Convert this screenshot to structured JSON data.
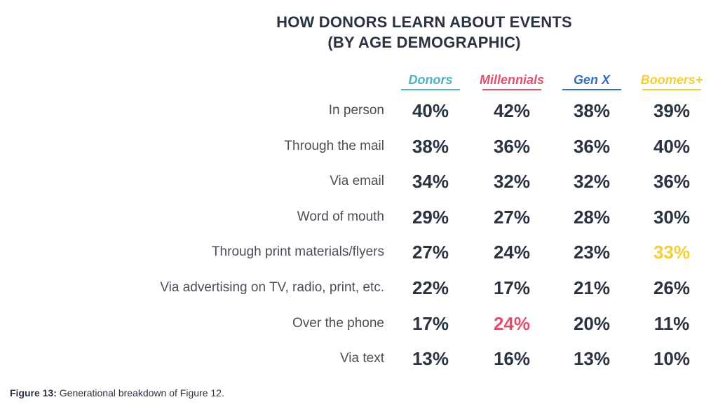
{
  "chart_data": {
    "type": "table",
    "title_line1": "HOW DONORS LEARN ABOUT EVENTS",
    "title_line2": "(BY AGE DEMOGRAPHIC)",
    "columns": [
      {
        "name": "Donors",
        "color": "#4bb3c1"
      },
      {
        "name": "Millennials",
        "color": "#e0506e"
      },
      {
        "name": "Gen X",
        "color": "#2f6fc0"
      },
      {
        "name": "Boomers+",
        "color": "#f2cf38"
      }
    ],
    "rows": [
      {
        "label": "In person",
        "values": [
          "40%",
          "42%",
          "38%",
          "39%"
        ]
      },
      {
        "label": "Through the mail",
        "values": [
          "38%",
          "36%",
          "36%",
          "40%"
        ]
      },
      {
        "label": "Via email",
        "values": [
          "34%",
          "32%",
          "32%",
          "36%"
        ]
      },
      {
        "label": "Word of mouth",
        "values": [
          "29%",
          "27%",
          "28%",
          "30%"
        ]
      },
      {
        "label": "Through print materials/flyers",
        "values": [
          "27%",
          "24%",
          "23%",
          "33%"
        ],
        "highlight_col": 3
      },
      {
        "label": "Via advertising on TV, radio, print, etc.",
        "values": [
          "22%",
          "17%",
          "21%",
          "26%"
        ]
      },
      {
        "label": "Over the phone",
        "values": [
          "17%",
          "24%",
          "20%",
          "11%"
        ],
        "highlight_col": 1
      },
      {
        "label": "Via text",
        "values": [
          "13%",
          "16%",
          "13%",
          "10%"
        ]
      }
    ],
    "default_value_color": "#2b3340"
  },
  "caption": {
    "label": "Figure 13:",
    "text": " Generational breakdown of Figure 12."
  }
}
